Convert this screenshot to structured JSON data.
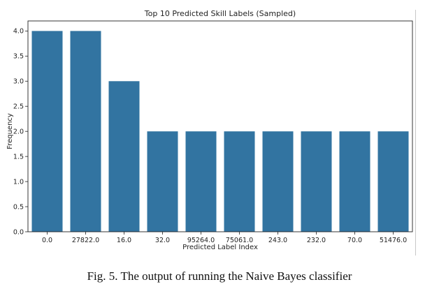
{
  "caption": "Fig. 5.  The output of running the Naive Bayes classifier",
  "chart_data": {
    "type": "bar",
    "title": "Top 10 Predicted Skill Labels (Sampled)",
    "xlabel": "Predicted Label Index",
    "ylabel": "Frequency",
    "categories": [
      "0.0",
      "27822.0",
      "16.0",
      "32.0",
      "95264.0",
      "75061.0",
      "243.0",
      "232.0",
      "70.0",
      "51476.0"
    ],
    "values": [
      4,
      4,
      3,
      2,
      2,
      2,
      2,
      2,
      2,
      2
    ],
    "ylim": [
      0,
      4.2
    ],
    "yticks": [
      "0.0",
      "0.5",
      "1.0",
      "1.5",
      "2.0",
      "2.5",
      "3.0",
      "3.5",
      "4.0"
    ],
    "bar_color": "#3274a1",
    "grid": false,
    "legend": "none"
  }
}
